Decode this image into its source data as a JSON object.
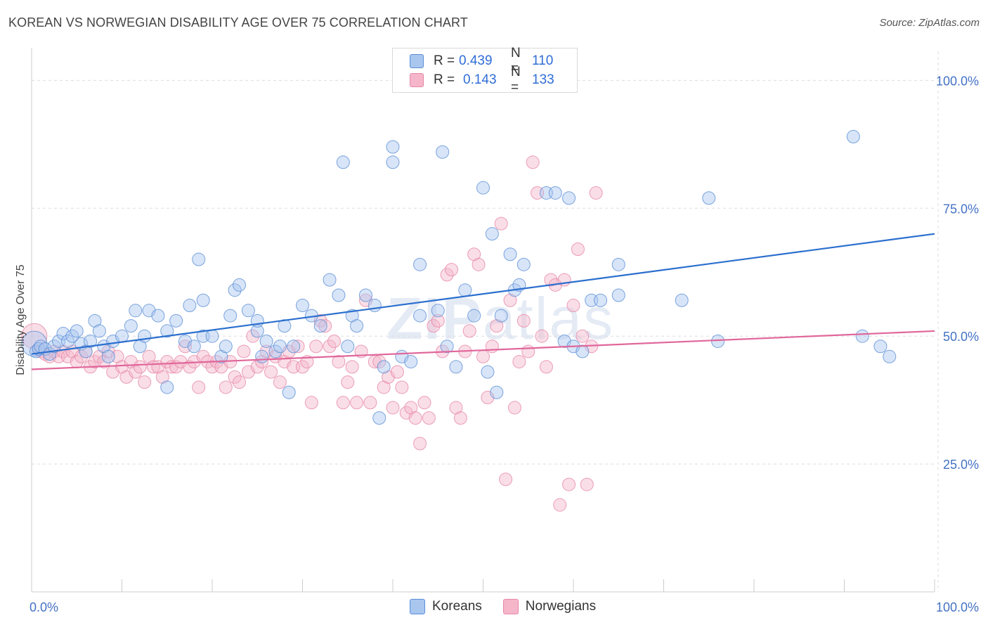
{
  "title": "KOREAN VS NORWEGIAN DISABILITY AGE OVER 75 CORRELATION CHART",
  "source": "Source: ZipAtlas.com",
  "watermark": {
    "bold": "ZIP",
    "light": "atlas"
  },
  "legend": {
    "rows": [
      {
        "r_label": "R =",
        "r_value": "0.439",
        "n_label": "N =",
        "n_value": "110",
        "color": "#a9c6ef"
      },
      {
        "r_label": "R =",
        "r_value": "0.143",
        "n_label": "N =",
        "n_value": "133",
        "color": "#f5b6ca"
      }
    ]
  },
  "bottom_legend": [
    {
      "label": "Koreans",
      "color": "#a9c6ef"
    },
    {
      "label": "Norwegians",
      "color": "#f5b6ca"
    }
  ],
  "colors": {
    "koreans_fill": "#a9c6ef",
    "koreans_stroke": "#5b8fd6",
    "koreans_line": "#2b6fce",
    "norwegians_fill": "#f5b6ca",
    "norwegians_stroke": "#e687a8",
    "norwegians_line": "#e0679a",
    "grid": "#dddddd",
    "axis": "#cccccc"
  },
  "chart_data": {
    "type": "scatter",
    "title": "KOREAN VS NORWEGIAN DISABILITY AGE OVER 75 CORRELATION CHART",
    "xlabel": "",
    "ylabel": "Disability Age Over 75",
    "xlim": [
      0,
      100
    ],
    "ylim": [
      0,
      105
    ],
    "x_tick_labels": [
      "0.0%",
      "100.0%"
    ],
    "y_tick_values": [
      25,
      50,
      75,
      100
    ],
    "y_tick_labels": [
      "25.0%",
      "50.0%",
      "75.0%",
      "100.0%"
    ],
    "grid": true,
    "series": [
      {
        "name": "Koreans",
        "r": 0.439,
        "n": 110,
        "trend": {
          "x0": 0,
          "y0": 46.5,
          "x1": 100,
          "y1": 70
        },
        "points": [
          [
            0.3,
            48.5
          ],
          [
            0.5,
            47
          ],
          [
            0.8,
            47.5
          ],
          [
            1,
            48
          ],
          [
            1.5,
            47.5
          ],
          [
            2,
            46.5
          ],
          [
            2.5,
            48
          ],
          [
            3,
            49
          ],
          [
            3.5,
            50.5
          ],
          [
            4,
            49
          ],
          [
            4.5,
            50
          ],
          [
            5,
            51
          ],
          [
            5.5,
            48.5
          ],
          [
            6,
            47
          ],
          [
            6.5,
            49
          ],
          [
            7,
            53
          ],
          [
            7.5,
            51
          ],
          [
            8,
            48
          ],
          [
            8.5,
            46
          ],
          [
            9,
            49
          ],
          [
            10,
            50
          ],
          [
            11,
            52
          ],
          [
            11.5,
            55
          ],
          [
            12,
            48
          ],
          [
            12.5,
            50
          ],
          [
            13,
            55
          ],
          [
            14,
            54
          ],
          [
            15,
            51
          ],
          [
            15,
            40
          ],
          [
            16,
            53
          ],
          [
            17,
            49
          ],
          [
            17.5,
            56
          ],
          [
            18,
            48
          ],
          [
            18.5,
            65
          ],
          [
            19,
            50
          ],
          [
            19,
            57
          ],
          [
            20,
            50
          ],
          [
            21,
            46
          ],
          [
            21.5,
            48
          ],
          [
            22,
            54
          ],
          [
            22.5,
            59
          ],
          [
            23,
            60
          ],
          [
            24,
            55
          ],
          [
            25,
            51
          ],
          [
            25,
            53
          ],
          [
            25.5,
            46
          ],
          [
            26,
            49
          ],
          [
            27,
            47
          ],
          [
            27.5,
            48
          ],
          [
            28,
            52
          ],
          [
            28.5,
            39
          ],
          [
            29,
            48
          ],
          [
            30,
            56
          ],
          [
            31,
            54
          ],
          [
            32,
            52
          ],
          [
            33,
            61
          ],
          [
            34,
            58
          ],
          [
            34.5,
            84
          ],
          [
            35,
            48
          ],
          [
            35.5,
            54
          ],
          [
            36,
            52
          ],
          [
            37,
            58
          ],
          [
            38,
            56
          ],
          [
            38.5,
            34
          ],
          [
            39,
            44
          ],
          [
            40,
            87
          ],
          [
            40,
            84
          ],
          [
            41,
            46
          ],
          [
            42,
            45
          ],
          [
            43,
            54
          ],
          [
            43,
            64
          ],
          [
            45,
            55
          ],
          [
            45.5,
            86
          ],
          [
            46,
            48
          ],
          [
            47,
            44
          ],
          [
            48,
            59
          ],
          [
            49,
            54
          ],
          [
            50,
            79
          ],
          [
            50.5,
            43
          ],
          [
            51,
            70
          ],
          [
            51.5,
            39
          ],
          [
            52,
            54
          ],
          [
            53,
            66
          ],
          [
            53.5,
            59
          ],
          [
            54,
            60
          ],
          [
            54.5,
            64
          ],
          [
            57,
            78
          ],
          [
            58,
            78
          ],
          [
            59,
            49
          ],
          [
            59.5,
            77
          ],
          [
            60,
            48
          ],
          [
            61,
            47
          ],
          [
            62,
            57
          ],
          [
            63,
            57
          ],
          [
            65,
            58
          ],
          [
            65,
            64
          ],
          [
            72,
            57
          ],
          [
            75,
            77
          ],
          [
            76,
            49
          ],
          [
            91,
            89
          ],
          [
            92,
            50
          ],
          [
            94,
            48
          ],
          [
            95,
            46
          ]
        ]
      },
      {
        "name": "Norwegians",
        "r": 0.143,
        "n": 133,
        "trend": {
          "x0": 0,
          "y0": 43.5,
          "x1": 100,
          "y1": 51
        },
        "points": [
          [
            0.3,
            50
          ],
          [
            0.8,
            47.5
          ],
          [
            1,
            47
          ],
          [
            1.5,
            46.5
          ],
          [
            2,
            46
          ],
          [
            2.5,
            47
          ],
          [
            3,
            46
          ],
          [
            3.5,
            47
          ],
          [
            4,
            46
          ],
          [
            4.5,
            47
          ],
          [
            5,
            45
          ],
          [
            5.5,
            46
          ],
          [
            6,
            47
          ],
          [
            6.5,
            44
          ],
          [
            7,
            45
          ],
          [
            7.5,
            46
          ],
          [
            8,
            45
          ],
          [
            8.5,
            47
          ],
          [
            9,
            43
          ],
          [
            9.5,
            46
          ],
          [
            10,
            44
          ],
          [
            10.5,
            42
          ],
          [
            11,
            45
          ],
          [
            11.5,
            43
          ],
          [
            12,
            44
          ],
          [
            12.5,
            41
          ],
          [
            13,
            46
          ],
          [
            13.5,
            44
          ],
          [
            14,
            44
          ],
          [
            14.5,
            42
          ],
          [
            15,
            45
          ],
          [
            15.5,
            44
          ],
          [
            16,
            44
          ],
          [
            16.5,
            45
          ],
          [
            17,
            48
          ],
          [
            17.5,
            44
          ],
          [
            18,
            45
          ],
          [
            18.5,
            40
          ],
          [
            19,
            46
          ],
          [
            19.5,
            45
          ],
          [
            20,
            44
          ],
          [
            20.5,
            45
          ],
          [
            21,
            44
          ],
          [
            21.5,
            40
          ],
          [
            22,
            45
          ],
          [
            22.5,
            42
          ],
          [
            23,
            41
          ],
          [
            23.5,
            47
          ],
          [
            24,
            43
          ],
          [
            24.5,
            50
          ],
          [
            25,
            44
          ],
          [
            25.5,
            45
          ],
          [
            26,
            47
          ],
          [
            26.5,
            43
          ],
          [
            27,
            46
          ],
          [
            27.5,
            41
          ],
          [
            28,
            45
          ],
          [
            28.5,
            47
          ],
          [
            29,
            44
          ],
          [
            29.5,
            48
          ],
          [
            30,
            44
          ],
          [
            30.5,
            45
          ],
          [
            31,
            37
          ],
          [
            31.5,
            48
          ],
          [
            32,
            53
          ],
          [
            32.5,
            52
          ],
          [
            33,
            48
          ],
          [
            33.5,
            49
          ],
          [
            34,
            45
          ],
          [
            34.5,
            37
          ],
          [
            35,
            41
          ],
          [
            35.5,
            44
          ],
          [
            36,
            37
          ],
          [
            36.5,
            47
          ],
          [
            37,
            57
          ],
          [
            37.5,
            37
          ],
          [
            38,
            45
          ],
          [
            38.5,
            45
          ],
          [
            39,
            40
          ],
          [
            39.5,
            42
          ],
          [
            40,
            36
          ],
          [
            40.5,
            43
          ],
          [
            41,
            40
          ],
          [
            41.5,
            35
          ],
          [
            42,
            36
          ],
          [
            42.5,
            34
          ],
          [
            43,
            29
          ],
          [
            43.5,
            37
          ],
          [
            44,
            34
          ],
          [
            44.5,
            52
          ],
          [
            45,
            53
          ],
          [
            45.5,
            47
          ],
          [
            46,
            62
          ],
          [
            46.5,
            63
          ],
          [
            47,
            36
          ],
          [
            47.5,
            34
          ],
          [
            48,
            47
          ],
          [
            48.5,
            51
          ],
          [
            49,
            66
          ],
          [
            49.5,
            64
          ],
          [
            50,
            46
          ],
          [
            50.5,
            38
          ],
          [
            51,
            48
          ],
          [
            51.5,
            52
          ],
          [
            52,
            72
          ],
          [
            52.5,
            22
          ],
          [
            53,
            57
          ],
          [
            53.5,
            36
          ],
          [
            54,
            45
          ],
          [
            54.5,
            53
          ],
          [
            55,
            47
          ],
          [
            55.5,
            84
          ],
          [
            56,
            78
          ],
          [
            56.5,
            50
          ],
          [
            57,
            44
          ],
          [
            57.5,
            61
          ],
          [
            58,
            60
          ],
          [
            58.5,
            17
          ],
          [
            59,
            61
          ],
          [
            59.5,
            21
          ],
          [
            60,
            56
          ],
          [
            60.5,
            67
          ],
          [
            61,
            50
          ],
          [
            61.5,
            21
          ],
          [
            62,
            48
          ],
          [
            62.5,
            78
          ]
        ]
      }
    ]
  }
}
